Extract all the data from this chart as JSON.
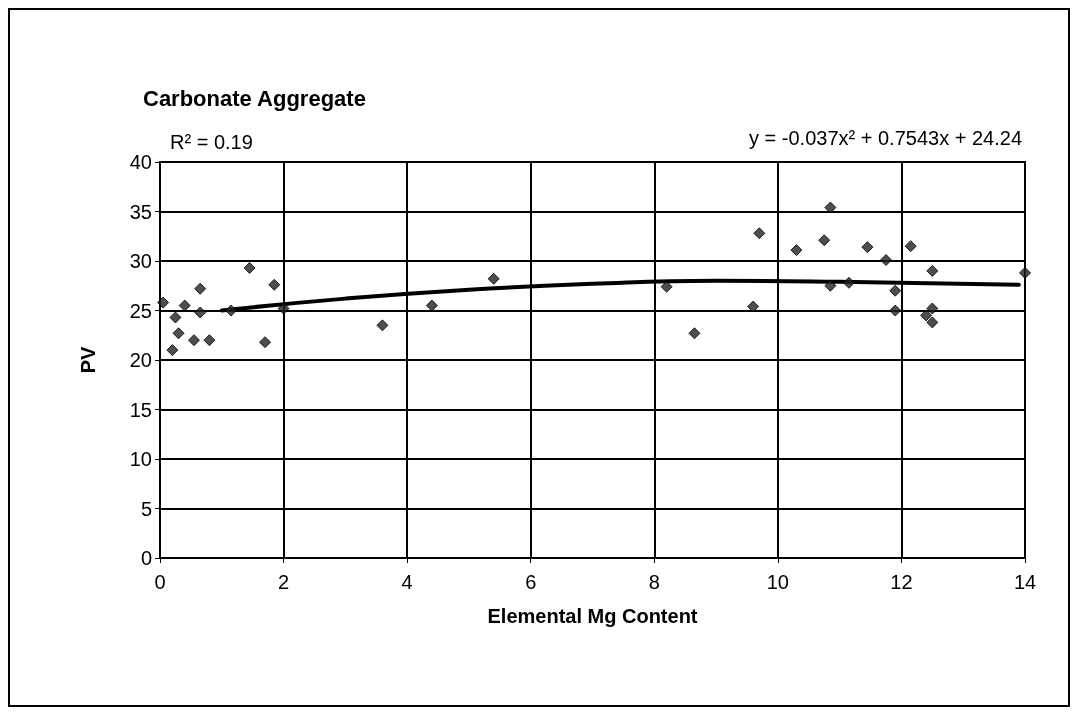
{
  "chart_data": {
    "type": "scatter",
    "title": "Carbonate Aggregate",
    "xlabel": "Elemental Mg Content",
    "ylabel": "PV",
    "annotations": [
      "R² = 0.19",
      "y = -0.037x² + 0.7543x + 24.24"
    ],
    "xlim": [
      0,
      14
    ],
    "xticks": [
      0,
      2,
      4,
      6,
      8,
      10,
      12,
      14
    ],
    "ylim": [
      0,
      40
    ],
    "yticks": [
      0,
      5,
      10,
      15,
      20,
      25,
      30,
      35,
      40
    ],
    "grid": true,
    "marker": "diamond",
    "series": [
      {
        "color": "#222222",
        "x": [
          0.05,
          0.2,
          0.25,
          0.3,
          0.4,
          0.55,
          0.65,
          0.65,
          0.8,
          1.15,
          1.45,
          1.7,
          1.85,
          2.0,
          3.6,
          4.4,
          5.4,
          8.2,
          8.65,
          9.6,
          9.7,
          10.3,
          10.75,
          10.85,
          10.85,
          11.15,
          11.45,
          11.75,
          11.9,
          11.9,
          12.15,
          12.4,
          12.5,
          12.5,
          12.5,
          14.0
        ],
        "values": [
          25.8,
          21,
          24.3,
          22.7,
          25.5,
          22,
          27.2,
          24.8,
          22,
          25,
          29.3,
          21.8,
          27.6,
          25.2,
          23.5,
          25.5,
          28.2,
          27.4,
          22.7,
          25.4,
          32.8,
          31.1,
          32.1,
          35.4,
          27.5,
          27.8,
          31.4,
          30.1,
          27,
          25,
          31.5,
          24.5,
          23.8,
          25.2,
          29,
          28.8
        ]
      },
      {
        "type": "line",
        "color": "#000000",
        "marker": "none",
        "x": [
          1.0,
          3,
          5,
          7,
          9,
          11,
          13.9
        ],
        "values": [
          25.0,
          26.2,
          27.1,
          27.7,
          28.0,
          27.9,
          27.6
        ]
      }
    ]
  }
}
